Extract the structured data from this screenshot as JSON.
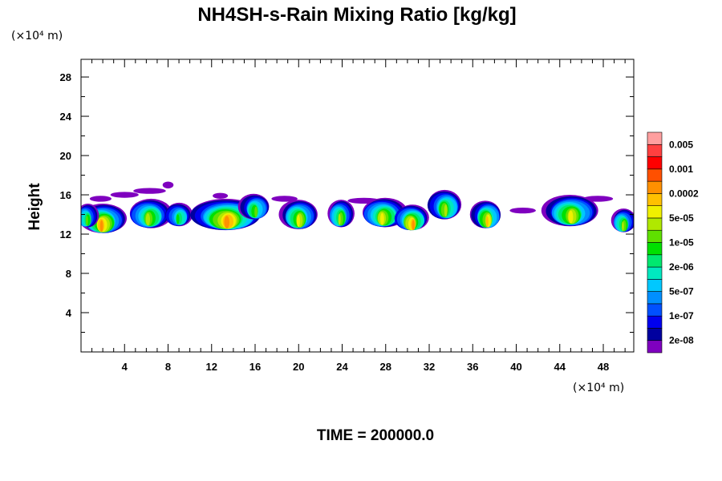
{
  "chart_data": {
    "type": "heatmap",
    "title": "NH4SH-s-Rain Mixing Ratio [kg/kg]",
    "ylabel": "Height",
    "x_unit": "(×10⁴ m)",
    "y_unit": "(×10⁴ m)",
    "xlim": [
      0,
      50.8
    ],
    "ylim": [
      0,
      29.8
    ],
    "x_ticks": [
      4,
      8,
      12,
      16,
      20,
      24,
      28,
      32,
      36,
      40,
      44,
      48
    ],
    "y_ticks": [
      4,
      8,
      12,
      16,
      20,
      24,
      28
    ],
    "footer": "TIME = 200000.0",
    "colorbar": {
      "colors": [
        "#7f00bf",
        "#00009f",
        "#0000ef",
        "#0050ff",
        "#008fff",
        "#00c8ff",
        "#00e8c0",
        "#00e870",
        "#00e000",
        "#5fe000",
        "#b0e800",
        "#f0f000",
        "#ffc000",
        "#ff9000",
        "#ff5000",
        "#ff0000",
        "#ff4040",
        "#ff9f9f"
      ],
      "labels": [
        "2e-08",
        "1e-07",
        "5e-07",
        "2e-06",
        "1e-05",
        "5e-05",
        "0.0002",
        "0.001",
        "0.005"
      ]
    },
    "cells": [
      {
        "x": 2.0,
        "y": 13.6,
        "rx": 2.1,
        "ry": 1.5,
        "peak": 14
      },
      {
        "x": 0.5,
        "y": 13.9,
        "rx": 1.0,
        "ry": 1.2,
        "peak": 10
      },
      {
        "x": 6.3,
        "y": 14.1,
        "rx": 2.0,
        "ry": 1.5,
        "peak": 11
      },
      {
        "x": 9.0,
        "y": 14.0,
        "rx": 1.3,
        "ry": 1.2,
        "peak": 9
      },
      {
        "x": 13.4,
        "y": 14.0,
        "rx": 3.3,
        "ry": 1.6,
        "peak": 14
      },
      {
        "x": 16.0,
        "y": 14.8,
        "rx": 1.4,
        "ry": 1.3,
        "peak": 10
      },
      {
        "x": 20.0,
        "y": 14.0,
        "rx": 1.7,
        "ry": 1.5,
        "peak": 12
      },
      {
        "x": 23.8,
        "y": 14.1,
        "rx": 1.2,
        "ry": 1.4,
        "peak": 11
      },
      {
        "x": 27.8,
        "y": 14.2,
        "rx": 2.1,
        "ry": 1.5,
        "peak": 12
      },
      {
        "x": 30.4,
        "y": 13.7,
        "rx": 1.6,
        "ry": 1.3,
        "peak": 14
      },
      {
        "x": 33.5,
        "y": 15.0,
        "rx": 1.6,
        "ry": 1.5,
        "peak": 11
      },
      {
        "x": 37.3,
        "y": 14.0,
        "rx": 1.4,
        "ry": 1.4,
        "peak": 13
      },
      {
        "x": 45.0,
        "y": 14.4,
        "rx": 2.5,
        "ry": 1.6,
        "peak": 12
      },
      {
        "x": 49.8,
        "y": 13.4,
        "rx": 1.1,
        "ry": 1.2,
        "peak": 11
      }
    ],
    "wisps": [
      {
        "x": 8.0,
        "y": 17.0,
        "rx": 0.5,
        "ry": 0.35
      },
      {
        "x": 6.3,
        "y": 16.4,
        "rx": 1.5,
        "ry": 0.3
      },
      {
        "x": 4.0,
        "y": 16.0,
        "rx": 1.3,
        "ry": 0.3
      },
      {
        "x": 1.8,
        "y": 15.6,
        "rx": 1.0,
        "ry": 0.3
      },
      {
        "x": 12.8,
        "y": 15.9,
        "rx": 0.7,
        "ry": 0.3
      },
      {
        "x": 18.7,
        "y": 15.6,
        "rx": 1.2,
        "ry": 0.3
      },
      {
        "x": 26.0,
        "y": 15.4,
        "rx": 1.5,
        "ry": 0.3
      },
      {
        "x": 40.6,
        "y": 14.4,
        "rx": 1.2,
        "ry": 0.3
      },
      {
        "x": 47.5,
        "y": 15.6,
        "rx": 1.4,
        "ry": 0.3
      }
    ]
  }
}
